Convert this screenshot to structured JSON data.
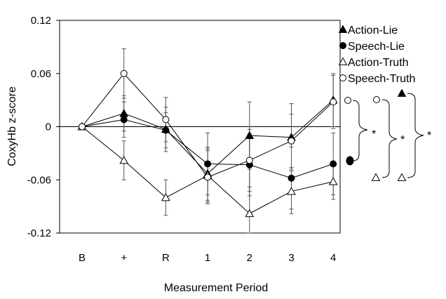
{
  "chart_data": {
    "type": "line",
    "title": "",
    "xlabel": "Measurement Period",
    "ylabel": "CoxyHb  z-score",
    "categories": [
      "B",
      "+",
      "R",
      "1",
      "2",
      "3",
      "4"
    ],
    "ylim": [
      -0.12,
      0.12
    ],
    "yticks": [
      0.12,
      0.06,
      0,
      -0.06,
      -0.12
    ],
    "ytick_labels": [
      "0.12",
      "0.06",
      "0",
      "-0.06",
      "-0.12"
    ],
    "grid": false,
    "legend_position": "top-right",
    "series": [
      {
        "name": "Action-Lie",
        "marker": "filled-triangle",
        "values": [
          0.0,
          0.015,
          -0.003,
          -0.053,
          -0.01,
          -0.012,
          0.03
        ],
        "errors": [
          0.0,
          0.02,
          0.025,
          0.03,
          0.038,
          0.038,
          0.03
        ]
      },
      {
        "name": "Speech-Lie",
        "marker": "filled-circle",
        "values": [
          0.0,
          0.008,
          -0.004,
          -0.042,
          -0.043,
          -0.058,
          -0.042
        ],
        "errors": [
          0.0,
          0.02,
          0.02,
          0.035,
          0.035,
          0.035,
          0.035
        ]
      },
      {
        "name": "Action-Truth",
        "marker": "open-triangle",
        "values": [
          0.0,
          -0.038,
          -0.08,
          -0.055,
          -0.098,
          -0.073,
          -0.062
        ],
        "errors": [
          0.0,
          0.022,
          0.02,
          0.03,
          0.03,
          0.025,
          0.02
        ]
      },
      {
        "name": "Speech-Truth",
        "marker": "open-circle",
        "values": [
          0.0,
          0.06,
          0.008,
          -0.057,
          -0.038,
          -0.016,
          0.028
        ],
        "errors": [
          0.0,
          0.028,
          0.025,
          0.03,
          0.035,
          0.03,
          0.03
        ]
      }
    ],
    "significance": {
      "label": "*",
      "comparisons": [
        {
          "upper": "Speech-Truth",
          "lower": "Speech-Lie"
        },
        {
          "upper": "Speech-Truth",
          "lower": "Action-Truth"
        },
        {
          "upper": "Action-Lie",
          "lower": "Action-Truth"
        }
      ]
    }
  }
}
